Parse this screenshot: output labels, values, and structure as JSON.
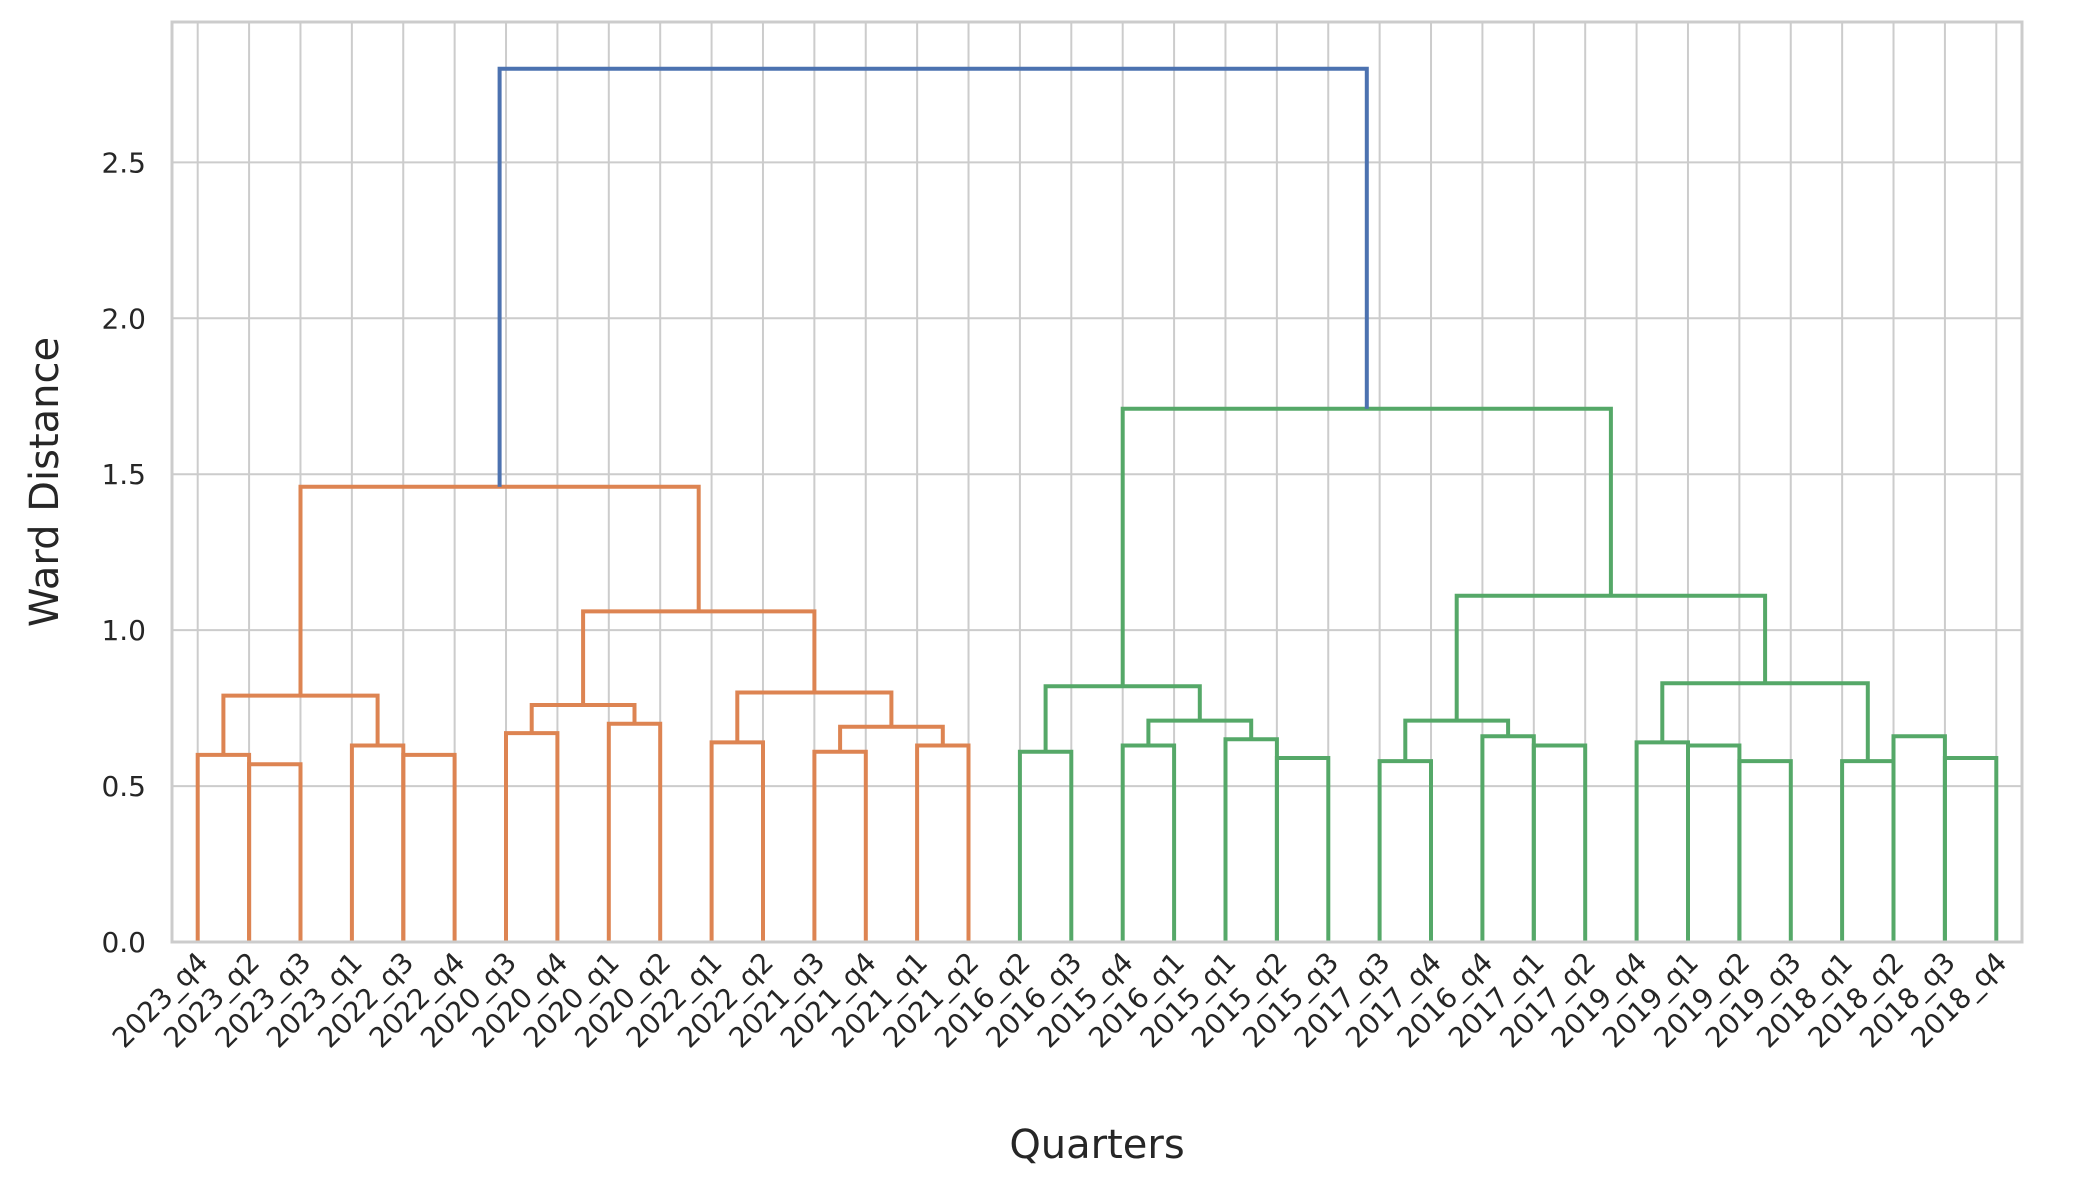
{
  "chart_data": {
    "type": "dendrogram",
    "title": "",
    "xlabel": "Quarters",
    "ylabel": "Ward Distance",
    "ylim": [
      0,
      2.95
    ],
    "yticks": [
      0.0,
      0.5,
      1.0,
      1.5,
      2.0,
      2.5
    ],
    "ytick_labels": [
      "0.0",
      "0.5",
      "1.0",
      "1.5",
      "2.0",
      "2.5"
    ],
    "grid": true,
    "leaves": [
      "2023_q4",
      "2023_q2",
      "2023_q3",
      "2023_q1",
      "2022_q3",
      "2022_q4",
      "2020_q3",
      "2020_q4",
      "2020_q1",
      "2020_q2",
      "2022_q1",
      "2022_q2",
      "2021_q3",
      "2021_q4",
      "2021_q1",
      "2021_q2",
      "2016_q2",
      "2016_q3",
      "2015_q4",
      "2016_q1",
      "2015_q1",
      "2015_q2",
      "2015_q3",
      "2017_q3",
      "2017_q4",
      "2016_q4",
      "2017_q1",
      "2017_q2",
      "2019_q4",
      "2019_q1",
      "2019_q2",
      "2019_q3",
      "2018_q1",
      "2018_q2",
      "2018_q3",
      "2018_q4"
    ],
    "colors": {
      "cluster_1": "#dd8452",
      "cluster_2": "#55a868",
      "root": "#4c72b0",
      "grid": "#cccccc",
      "frame": "#cccccc"
    },
    "merges": [
      {
        "left": "L0",
        "right": "L1",
        "height": 0.6,
        "color": "cluster_1"
      },
      {
        "left": "L1",
        "right": "L2",
        "height": 0.57,
        "color": "cluster_1"
      },
      {
        "left": "L3",
        "right": "L4",
        "height": 0.63,
        "color": "cluster_1"
      },
      {
        "left": "L4",
        "right": "L5",
        "height": 0.6,
        "color": "cluster_1"
      },
      {
        "left": "L6",
        "right": "L7",
        "height": 0.67,
        "color": "cluster_1"
      },
      {
        "left": "L8",
        "right": "L9",
        "height": 0.7,
        "color": "cluster_1"
      },
      {
        "left": "L10",
        "right": "L11",
        "height": 0.64,
        "color": "cluster_1"
      },
      {
        "left": "L12",
        "right": "L13",
        "height": 0.61,
        "color": "cluster_1"
      },
      {
        "left": "L14",
        "right": "L15",
        "height": 0.63,
        "color": "cluster_1"
      },
      {
        "left": "L16",
        "right": "L17",
        "height": 0.61,
        "color": "cluster_2"
      },
      {
        "left": "L18",
        "right": "L19",
        "height": 0.63,
        "color": "cluster_2"
      },
      {
        "left": "L20",
        "right": "L21",
        "height": 0.65,
        "color": "cluster_2"
      },
      {
        "left": "L21",
        "right": "L22",
        "height": 0.59,
        "color": "cluster_2"
      },
      {
        "left": "L23",
        "right": "L24",
        "height": 0.58,
        "color": "cluster_2"
      },
      {
        "left": "L25",
        "right": "L26",
        "height": 0.66,
        "color": "cluster_2"
      },
      {
        "left": "L26",
        "right": "L27",
        "height": 0.63,
        "color": "cluster_2"
      },
      {
        "left": "L28",
        "right": "L29",
        "height": 0.64,
        "color": "cluster_2"
      },
      {
        "left": "L29",
        "right": "L30",
        "height": 0.63,
        "color": "cluster_2"
      },
      {
        "left": "L30",
        "right": "L31",
        "height": 0.58,
        "color": "cluster_2"
      },
      {
        "left": "L32",
        "right": "L33",
        "height": 0.58,
        "color": "cluster_2"
      },
      {
        "left": "L33",
        "right": "L34",
        "height": 0.66,
        "color": "cluster_2"
      },
      {
        "left": "L34",
        "right": "L35",
        "height": 0.59,
        "color": "cluster_2"
      },
      {
        "left": "M0",
        "right": "M2",
        "height": 0.79,
        "color": "cluster_1"
      },
      {
        "left": "M4",
        "right": "M5",
        "height": 0.76,
        "color": "cluster_1"
      },
      {
        "left": "M7",
        "right": "M8",
        "height": 0.69,
        "color": "cluster_1"
      },
      {
        "left": "M6",
        "right": "M24",
        "height": 0.8,
        "color": "cluster_1"
      },
      {
        "left": "M23",
        "right": "M25",
        "height": 1.06,
        "color": "cluster_1"
      },
      {
        "left": "M22",
        "right": "M26",
        "height": 1.46,
        "color": "cluster_1"
      },
      {
        "left": "M10",
        "right": "M11",
        "height": 0.71,
        "color": "cluster_2"
      },
      {
        "left": "M9",
        "right": "M28",
        "height": 0.82,
        "color": "cluster_2"
      },
      {
        "left": "M13",
        "right": "M14",
        "height": 0.71,
        "color": "cluster_2"
      },
      {
        "left": "M16",
        "right": "M19",
        "height": 0.83,
        "color": "cluster_2"
      },
      {
        "left": "M30",
        "right": "M31",
        "height": 1.11,
        "color": "cluster_2"
      },
      {
        "left": "M29",
        "right": "M32",
        "height": 1.71,
        "color": "cluster_2"
      },
      {
        "left": "M27",
        "right": "M33",
        "height": 2.8,
        "color": "root"
      }
    ]
  }
}
